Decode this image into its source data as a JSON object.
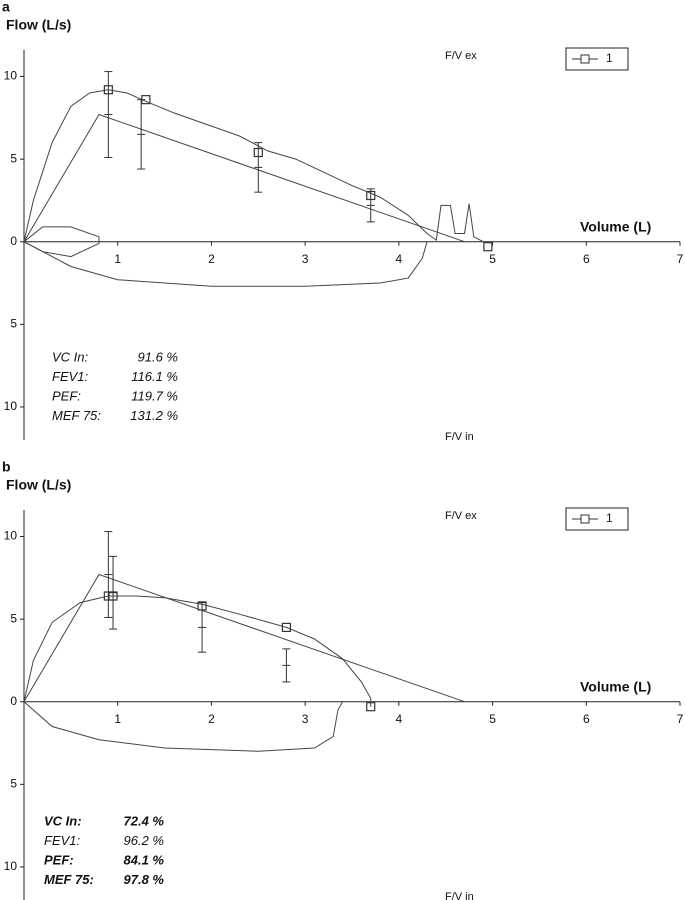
{
  "chart_data": [
    {
      "type": "line",
      "panel": "a",
      "ylabel": "Flow (L/s)",
      "xlabel": "Volume (L)",
      "top_label": "F/V ex",
      "bottom_label": "F/V in",
      "xlim": [
        0,
        7
      ],
      "xticks": [
        1,
        2,
        3,
        4,
        5,
        6,
        7
      ],
      "ylim": [
        -12,
        11
      ],
      "yticks": [
        10,
        5,
        0,
        {
          "value": -5,
          "label": "5"
        },
        {
          "value": -10,
          "label": "10"
        }
      ],
      "legend": "top-right",
      "series": [
        {
          "name": "1",
          "color": "#333",
          "marker": "square",
          "x": [
            0.9,
            1.3,
            2.5,
            3.7,
            4.95
          ],
          "values": [
            9.2,
            8.6,
            5.4,
            2.8,
            -0.3
          ]
        },
        {
          "color": "#444",
          "x": [
            0,
            0.1,
            0.3,
            0.5,
            0.7,
            0.9,
            1.1,
            1.3,
            1.6,
            2,
            2.3,
            2.6,
            2.9,
            3.2,
            3.5,
            3.8,
            4.1,
            4.3,
            4.4,
            4.45,
            4.55,
            4.6,
            4.7,
            4.75,
            4.8,
            4.9
          ],
          "values": [
            0,
            2.5,
            6,
            8.2,
            9,
            9.2,
            9,
            8.5,
            7.8,
            7,
            6.4,
            5.5,
            5,
            4.2,
            3.4,
            2.7,
            1.6,
            0.5,
            0.1,
            2.2,
            2.2,
            0.5,
            0.5,
            2.3,
            0.3,
            0
          ]
        },
        {
          "color": "#444",
          "x": [
            0,
            0.5,
            1,
            2,
            3,
            3.8,
            4.1,
            4.25,
            4.3
          ],
          "values": [
            0,
            -1.5,
            -2.3,
            -2.7,
            -2.7,
            -2.5,
            -2.2,
            -1,
            0
          ]
        },
        {
          "color": "#444",
          "x": [
            0,
            0.2,
            0.5,
            0.8,
            0.8,
            0.5,
            0.2,
            0
          ],
          "values": [
            0,
            0.9,
            0.9,
            0.3,
            -0.1,
            -0.9,
            -0.6,
            0
          ]
        },
        {
          "color": "#444",
          "x": [
            0,
            0.8,
            4.7
          ],
          "values": [
            0,
            7.7,
            0
          ]
        }
      ],
      "error_bars": {
        "color": "#333",
        "x": [
          0.9,
          1.25,
          2.5,
          3.7
        ],
        "values": [
          7.7,
          6.5,
          4.5,
          2.2
        ],
        "errors": [
          2.6,
          2.1,
          1.5,
          1
        ]
      },
      "stats": [
        [
          "VC In:",
          "91.6 %"
        ],
        [
          "FEV1:",
          "116.1 %"
        ],
        [
          "PEF:",
          "119.7 %"
        ],
        [
          "MEF 75:",
          "131.2 %"
        ]
      ],
      "stats_bold": [
        false,
        false,
        false,
        false
      ]
    },
    {
      "type": "line",
      "panel": "b",
      "ylabel": "Flow (L/s)",
      "xlabel": "Volume (L)",
      "top_label": "F/V ex",
      "bottom_label": "F/V in",
      "xlim": [
        0,
        7
      ],
      "xticks": [
        1,
        2,
        3,
        4,
        5,
        6,
        7
      ],
      "ylim": [
        -12,
        11
      ],
      "yticks": [
        10,
        5,
        0,
        {
          "value": -5,
          "label": "5"
        },
        {
          "value": -10,
          "label": "10"
        }
      ],
      "legend": "top-right",
      "series": [
        {
          "name": "1",
          "color": "#333",
          "marker": "square",
          "x": [
            0.9,
            0.95,
            1.9,
            2.8,
            3.7
          ],
          "values": [
            6.4,
            6.4,
            5.8,
            4.5,
            -0.3
          ]
        },
        {
          "color": "#444",
          "x": [
            0,
            0.1,
            0.3,
            0.6,
            0.9,
            1.2,
            1.5,
            1.9,
            2.3,
            2.8,
            3.1,
            3.4,
            3.6,
            3.7,
            3.7
          ],
          "values": [
            0,
            2.5,
            4.8,
            6,
            6.4,
            6.4,
            6.3,
            5.9,
            5.3,
            4.5,
            3.8,
            2.6,
            1.2,
            0.2,
            -0.3
          ]
        },
        {
          "color": "#444",
          "x": [
            0,
            0.3,
            0.8,
            1.5,
            2.5,
            3.1,
            3.3,
            3.35,
            3.4
          ],
          "values": [
            0,
            -1.5,
            -2.3,
            -2.8,
            -3,
            -2.8,
            -2.1,
            -0.5,
            0
          ]
        },
        {
          "color": "#444",
          "x": [
            0,
            0.8,
            4.7
          ],
          "values": [
            0,
            7.7,
            0
          ]
        }
      ],
      "error_bars": {
        "color": "#333",
        "x": [
          0.9,
          0.95,
          1.9,
          2.8
        ],
        "values": [
          7.7,
          6.6,
          4.5,
          2.2
        ],
        "errors": [
          2.6,
          2.2,
          1.5,
          1
        ]
      },
      "stats": [
        [
          "VC In:",
          "72.4 %"
        ],
        [
          "FEV1:",
          "96.2 %"
        ],
        [
          "PEF:",
          "84.1 %"
        ],
        [
          "MEF 75:",
          "97.8 %"
        ]
      ],
      "stats_bold": [
        true,
        false,
        true,
        true
      ]
    }
  ]
}
